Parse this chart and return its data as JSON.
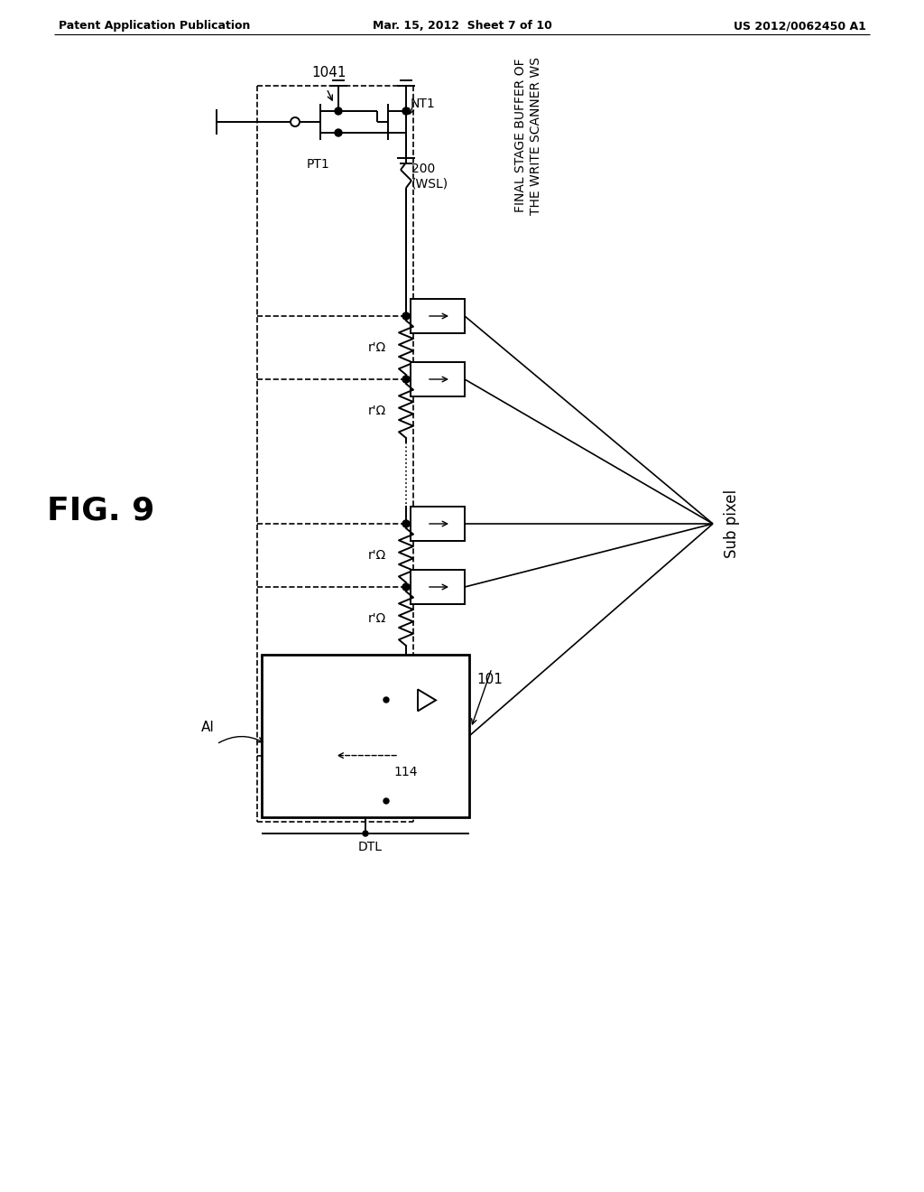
{
  "header_left": "Patent Application Publication",
  "header_center": "Mar. 15, 2012  Sheet 7 of 10",
  "header_right": "US 2012/0062450 A1",
  "bg_color": "#ffffff",
  "fig_label": "FIG. 9",
  "label_1041": "1041",
  "label_NT1": "NT1",
  "label_PT1": "PT1",
  "label_200_wsl": "200\n(WSL)",
  "label_final1": "FINAL STAGE BUFFER OF",
  "label_final2": "THE WRITE SCANNER WS",
  "label_rOhm": "r'Ω",
  "label_101": "101",
  "label_AI": "AI",
  "label_DTL": "DTL",
  "label_114": "114",
  "label_subpixel": "Sub pixel"
}
